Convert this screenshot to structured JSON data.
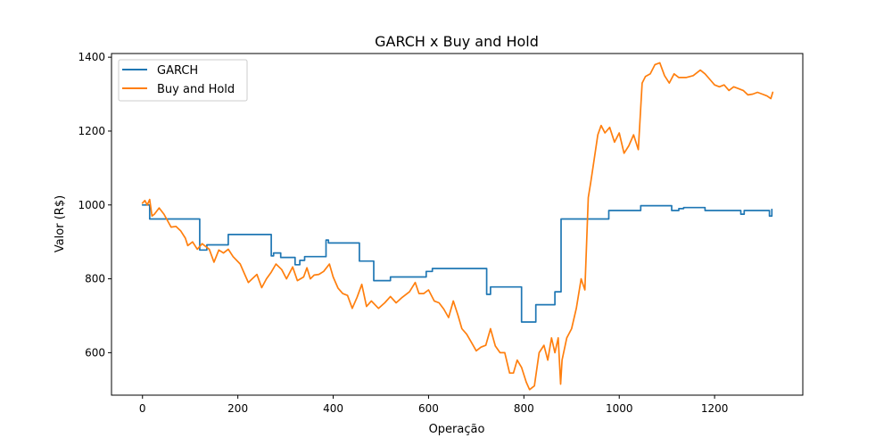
{
  "chart_data": {
    "type": "line",
    "title": "GARCH x Buy and Hold",
    "xlabel": "Operação",
    "ylabel": "Valor (R$)",
    "xlim": [
      -65,
      1385
    ],
    "ylim": [
      485,
      1410
    ],
    "xticks": [
      0,
      200,
      400,
      600,
      800,
      1000,
      1200
    ],
    "yticks": [
      600,
      800,
      1000,
      1200,
      1400
    ],
    "grid": false,
    "legend_position": "top-left",
    "series": [
      {
        "name": "GARCH",
        "color": "#1f77b4",
        "points": [
          [
            0,
            1000
          ],
          [
            15,
            1000
          ],
          [
            15,
            962
          ],
          [
            120,
            962
          ],
          [
            120,
            878
          ],
          [
            135,
            878
          ],
          [
            135,
            892
          ],
          [
            180,
            892
          ],
          [
            180,
            920
          ],
          [
            270,
            920
          ],
          [
            270,
            862
          ],
          [
            275,
            862
          ],
          [
            275,
            870
          ],
          [
            290,
            870
          ],
          [
            290,
            858
          ],
          [
            320,
            858
          ],
          [
            320,
            838
          ],
          [
            330,
            838
          ],
          [
            330,
            850
          ],
          [
            340,
            850
          ],
          [
            340,
            860
          ],
          [
            385,
            860
          ],
          [
            385,
            905
          ],
          [
            390,
            905
          ],
          [
            390,
            897
          ],
          [
            455,
            897
          ],
          [
            455,
            848
          ],
          [
            485,
            848
          ],
          [
            485,
            795
          ],
          [
            520,
            795
          ],
          [
            520,
            805
          ],
          [
            595,
            805
          ],
          [
            595,
            820
          ],
          [
            608,
            820
          ],
          [
            608,
            828
          ],
          [
            722,
            828
          ],
          [
            722,
            758
          ],
          [
            730,
            758
          ],
          [
            730,
            778
          ],
          [
            795,
            778
          ],
          [
            795,
            683
          ],
          [
            825,
            683
          ],
          [
            825,
            730
          ],
          [
            865,
            730
          ],
          [
            865,
            765
          ],
          [
            878,
            765
          ],
          [
            878,
            962
          ],
          [
            978,
            962
          ],
          [
            978,
            985
          ],
          [
            1045,
            985
          ],
          [
            1045,
            998
          ],
          [
            1110,
            998
          ],
          [
            1110,
            985
          ],
          [
            1125,
            985
          ],
          [
            1125,
            990
          ],
          [
            1135,
            990
          ],
          [
            1135,
            993
          ],
          [
            1180,
            993
          ],
          [
            1180,
            985
          ],
          [
            1255,
            985
          ],
          [
            1255,
            975
          ],
          [
            1262,
            975
          ],
          [
            1262,
            985
          ],
          [
            1315,
            985
          ],
          [
            1315,
            970
          ],
          [
            1320,
            970
          ],
          [
            1320,
            988
          ]
        ]
      },
      {
        "name": "Buy and Hold",
        "color": "#ff7f0e",
        "points": [
          [
            0,
            1005
          ],
          [
            5,
            1012
          ],
          [
            10,
            1000
          ],
          [
            15,
            1015
          ],
          [
            20,
            970
          ],
          [
            25,
            975
          ],
          [
            35,
            992
          ],
          [
            45,
            975
          ],
          [
            60,
            940
          ],
          [
            70,
            942
          ],
          [
            80,
            930
          ],
          [
            90,
            910
          ],
          [
            95,
            890
          ],
          [
            105,
            900
          ],
          [
            115,
            880
          ],
          [
            125,
            895
          ],
          [
            140,
            880
          ],
          [
            150,
            845
          ],
          [
            160,
            878
          ],
          [
            170,
            870
          ],
          [
            180,
            880
          ],
          [
            190,
            860
          ],
          [
            205,
            840
          ],
          [
            215,
            810
          ],
          [
            222,
            790
          ],
          [
            230,
            800
          ],
          [
            240,
            812
          ],
          [
            250,
            776
          ],
          [
            260,
            800
          ],
          [
            270,
            818
          ],
          [
            280,
            840
          ],
          [
            292,
            825
          ],
          [
            302,
            800
          ],
          [
            315,
            832
          ],
          [
            325,
            795
          ],
          [
            338,
            805
          ],
          [
            345,
            830
          ],
          [
            352,
            800
          ],
          [
            360,
            810
          ],
          [
            370,
            812
          ],
          [
            380,
            820
          ],
          [
            392,
            840
          ],
          [
            400,
            805
          ],
          [
            410,
            775
          ],
          [
            420,
            760
          ],
          [
            430,
            755
          ],
          [
            440,
            720
          ],
          [
            450,
            750
          ],
          [
            460,
            785
          ],
          [
            470,
            725
          ],
          [
            480,
            740
          ],
          [
            495,
            720
          ],
          [
            508,
            735
          ],
          [
            520,
            752
          ],
          [
            532,
            735
          ],
          [
            545,
            750
          ],
          [
            560,
            765
          ],
          [
            572,
            790
          ],
          [
            580,
            760
          ],
          [
            590,
            760
          ],
          [
            600,
            770
          ],
          [
            612,
            740
          ],
          [
            622,
            735
          ],
          [
            632,
            718
          ],
          [
            642,
            695
          ],
          [
            652,
            740
          ],
          [
            662,
            700
          ],
          [
            670,
            665
          ],
          [
            680,
            650
          ],
          [
            690,
            628
          ],
          [
            700,
            605
          ],
          [
            710,
            615
          ],
          [
            720,
            620
          ],
          [
            730,
            665
          ],
          [
            740,
            618
          ],
          [
            750,
            600
          ],
          [
            760,
            600
          ],
          [
            770,
            545
          ],
          [
            778,
            545
          ],
          [
            786,
            580
          ],
          [
            795,
            560
          ],
          [
            805,
            520
          ],
          [
            812,
            500
          ],
          [
            822,
            510
          ],
          [
            832,
            600
          ],
          [
            842,
            620
          ],
          [
            850,
            580
          ],
          [
            858,
            640
          ],
          [
            865,
            600
          ],
          [
            872,
            640
          ],
          [
            877,
            515
          ],
          [
            880,
            580
          ],
          [
            890,
            640
          ],
          [
            900,
            665
          ],
          [
            910,
            720
          ],
          [
            920,
            800
          ],
          [
            928,
            770
          ],
          [
            935,
            1020
          ],
          [
            940,
            1060
          ],
          [
            947,
            1120
          ],
          [
            955,
            1190
          ],
          [
            962,
            1215
          ],
          [
            970,
            1195
          ],
          [
            980,
            1210
          ],
          [
            990,
            1170
          ],
          [
            1000,
            1195
          ],
          [
            1010,
            1140
          ],
          [
            1020,
            1160
          ],
          [
            1030,
            1190
          ],
          [
            1040,
            1150
          ],
          [
            1048,
            1330
          ],
          [
            1055,
            1348
          ],
          [
            1065,
            1355
          ],
          [
            1075,
            1380
          ],
          [
            1085,
            1385
          ],
          [
            1095,
            1350
          ],
          [
            1105,
            1330
          ],
          [
            1115,
            1355
          ],
          [
            1125,
            1345
          ],
          [
            1140,
            1345
          ],
          [
            1155,
            1350
          ],
          [
            1170,
            1365
          ],
          [
            1180,
            1355
          ],
          [
            1190,
            1340
          ],
          [
            1200,
            1325
          ],
          [
            1210,
            1320
          ],
          [
            1220,
            1325
          ],
          [
            1230,
            1310
          ],
          [
            1240,
            1320
          ],
          [
            1250,
            1315
          ],
          [
            1260,
            1310
          ],
          [
            1270,
            1298
          ],
          [
            1280,
            1300
          ],
          [
            1290,
            1305
          ],
          [
            1300,
            1300
          ],
          [
            1310,
            1295
          ],
          [
            1318,
            1288
          ],
          [
            1322,
            1305
          ]
        ]
      }
    ]
  }
}
